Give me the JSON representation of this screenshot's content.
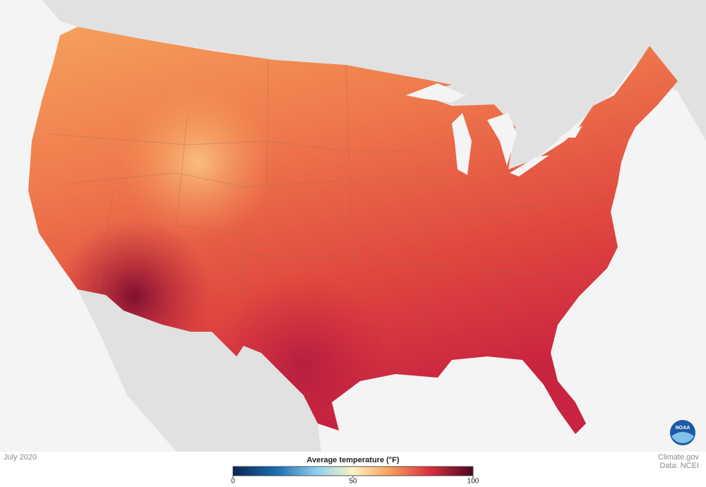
{
  "map": {
    "date": "July 2020",
    "credit": "Climate.gov",
    "source": "Data: NCEI",
    "logo": "NOAA"
  },
  "legend": {
    "title": "Average temperature (°F)",
    "range": [
      0,
      100
    ],
    "ticks": [
      0,
      50,
      100
    ]
  }
}
